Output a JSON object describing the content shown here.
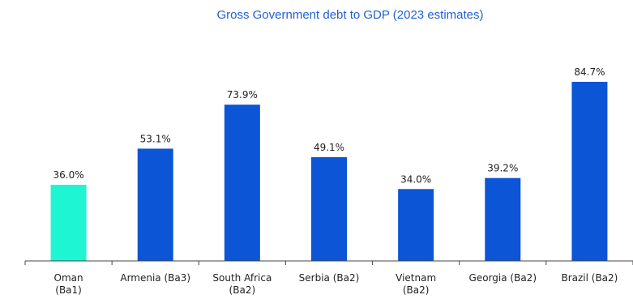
{
  "chart_data": {
    "type": "bar",
    "title": "Gross Government debt to GDP (2023 estimates)",
    "xlabel": "",
    "ylabel": "",
    "categories": [
      [
        "Oman",
        "(Ba1)"
      ],
      [
        "Armenia (Ba3)"
      ],
      [
        "South Africa",
        "(Ba2)"
      ],
      [
        "Serbia (Ba2)"
      ],
      [
        "Vietnam",
        "(Ba2)"
      ],
      [
        "Georgia (Ba2)"
      ],
      [
        "Brazil (Ba2)"
      ]
    ],
    "values": [
      36.0,
      53.1,
      73.9,
      49.1,
      34.0,
      39.2,
      84.7
    ],
    "data_labels": [
      "36.0%",
      "53.1%",
      "73.9%",
      "49.1%",
      "34.0%",
      "39.2%",
      "84.7%"
    ],
    "colors": [
      "#1ef5d2",
      "#0b55d6",
      "#0b55d6",
      "#0b55d6",
      "#0b55d6",
      "#0b55d6",
      "#0b55d6"
    ],
    "ylim": [
      0,
      84.7
    ],
    "grid": false,
    "legend": "none"
  }
}
